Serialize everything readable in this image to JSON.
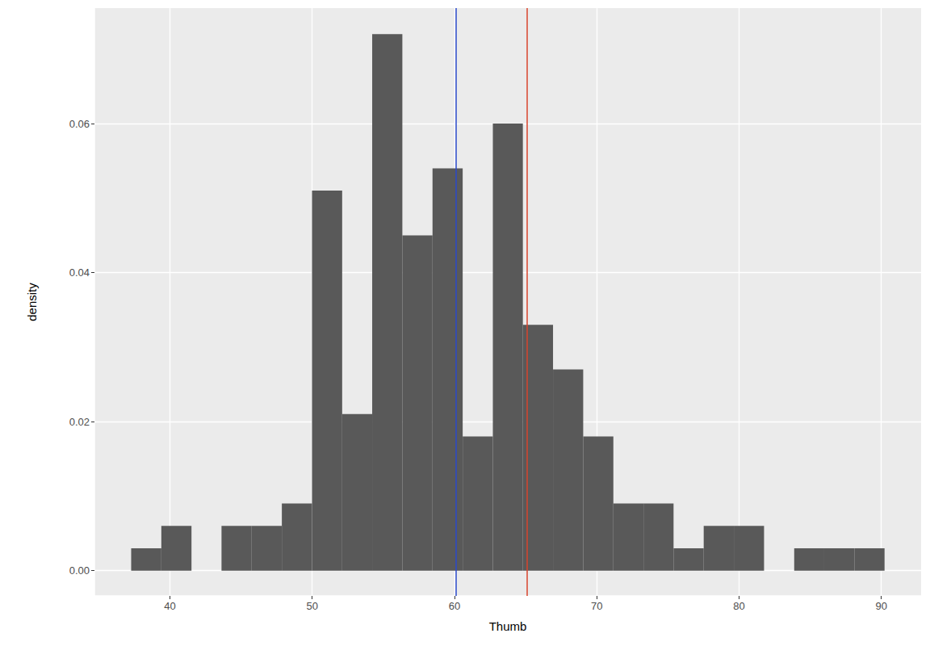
{
  "chart_data": {
    "type": "histogram",
    "x_label": "Thumb",
    "y_label": "density",
    "bins": [
      37.28,
      39.4,
      41.52,
      43.63,
      45.75,
      47.87,
      49.99,
      52.11,
      54.22,
      56.34,
      58.46,
      60.58,
      62.7,
      64.81,
      66.93,
      69.05,
      71.17,
      73.29,
      75.4,
      77.52,
      79.64,
      81.76,
      83.88,
      85.99,
      88.11,
      90.23
    ],
    "values": [
      0.003,
      0.006,
      0,
      0.006,
      0.006,
      0.009,
      0.051,
      0.021,
      0.072,
      0.045,
      0.054,
      0.018,
      0.06,
      0.033,
      0.027,
      0.018,
      0.009,
      0.009,
      0.003,
      0.006,
      0.006,
      0,
      0.003,
      0.003,
      0.003
    ],
    "color": "#595959",
    "xlim": [
      34.7,
      92.8
    ],
    "ylim": [
      -0.0034,
      0.0755
    ],
    "xticks": [
      40,
      50,
      60,
      70,
      80,
      90
    ],
    "yticks": [
      {
        "value": 0,
        "label": "0.00"
      },
      {
        "value": 0.02,
        "label": "0.02"
      },
      {
        "value": 0.04,
        "label": "0.04"
      },
      {
        "value": 0.06,
        "label": "0.06"
      }
    ],
    "grid": true,
    "vlines": [
      {
        "value": 60.09,
        "color": "#2b4acb"
      },
      {
        "value": 65.08,
        "color": "#d9442e"
      }
    ]
  }
}
